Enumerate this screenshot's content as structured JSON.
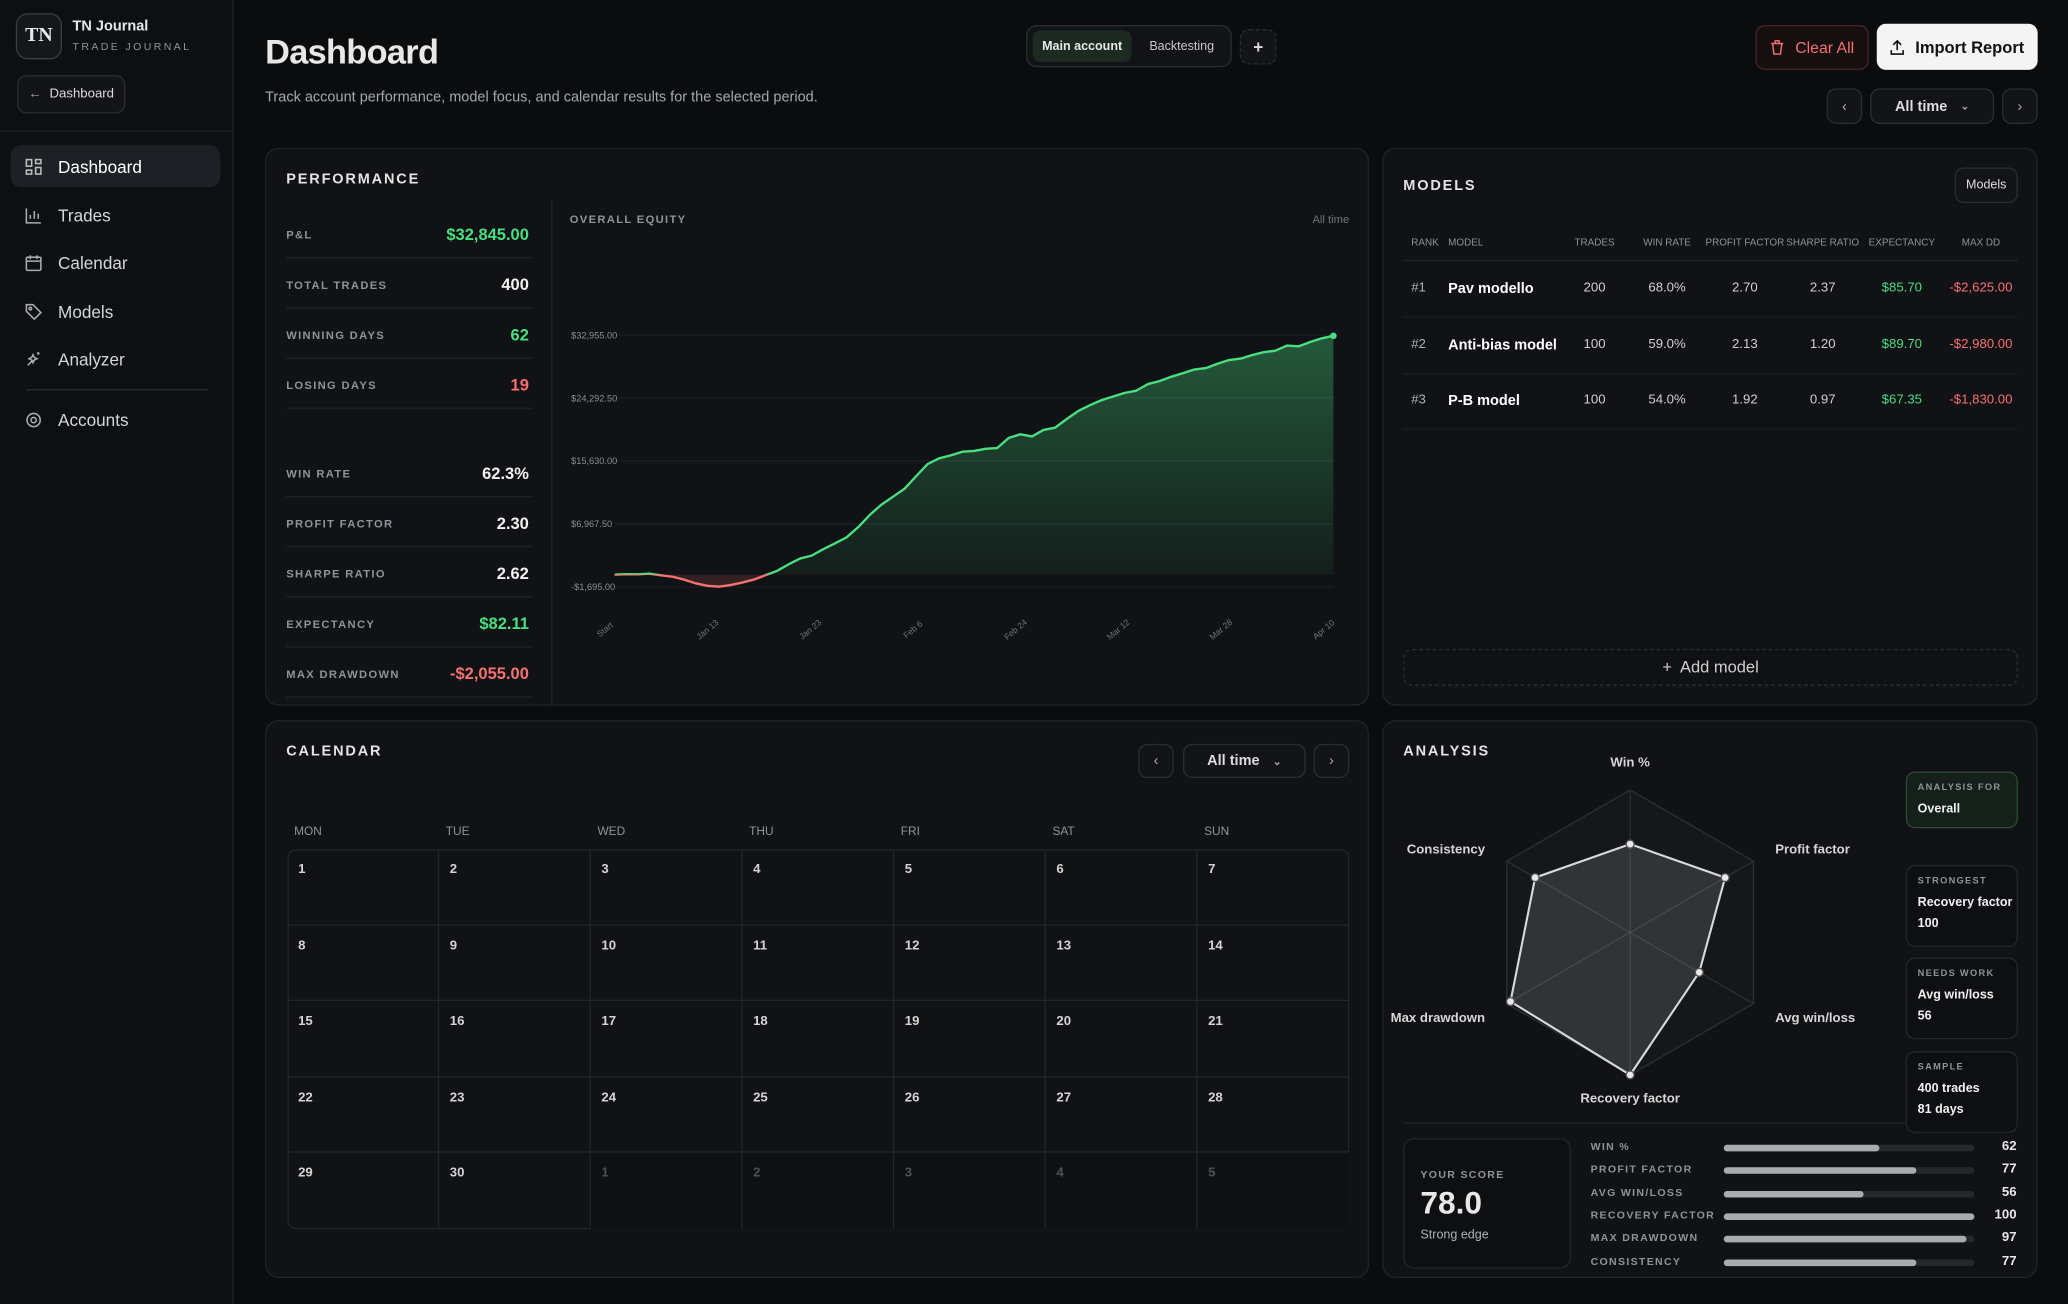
{
  "sidebar": {
    "brand": "TN",
    "app_name": "TN Journal",
    "app_subtitle": "TRADE JOURNAL",
    "back_button": "Dashboard",
    "nav": [
      "Dashboard",
      "Trades",
      "Calendar",
      "Models",
      "Analyzer"
    ],
    "nav_footer": "Accounts"
  },
  "header": {
    "title": "Dashboard",
    "subtitle": "Track account performance, model focus, and calendar results for the selected period.",
    "account_tabs": [
      "Main account",
      "Backtesting"
    ],
    "add_button": "+",
    "clear_button": "Clear All",
    "import_button": "Import Report",
    "period": "All time"
  },
  "performance": {
    "title": "PERFORMANCE",
    "stats": [
      {
        "label": "P&L",
        "value": "$32,845.00",
        "color": "#4ade80"
      },
      {
        "label": "TOTAL TRADES",
        "value": "400",
        "color": "#f2f2f2"
      },
      {
        "label": "WINNING DAYS",
        "value": "62",
        "color": "#4ade80"
      },
      {
        "label": "LOSING DAYS",
        "value": "19",
        "color": "#f87171"
      }
    ],
    "ratios": [
      {
        "label": "WIN RATE",
        "value": "62.3%",
        "color": "#f2f2f2"
      },
      {
        "label": "PROFIT FACTOR",
        "value": "2.30",
        "color": "#f2f2f2"
      },
      {
        "label": "SHARPE RATIO",
        "value": "2.62",
        "color": "#f2f2f2"
      },
      {
        "label": "EXPECTANCY",
        "value": "$82.11",
        "color": "#4ade80"
      },
      {
        "label": "MAX DRAWDOWN",
        "value": "-$2,055.00",
        "color": "#f87171"
      }
    ]
  },
  "chart_data": [
    {
      "type": "line",
      "title": "OVERALL EQUITY",
      "period_label": "All time",
      "x_labels": [
        "Start",
        "Jan 13",
        "Jan 23",
        "Feb 6",
        "Feb 24",
        "Mar 12",
        "Mar 28",
        "Apr 10"
      ],
      "values": [
        0,
        50,
        30,
        120,
        -100,
        -300,
        -700,
        -1200,
        -1550,
        -1650,
        -1450,
        -1100,
        -700,
        -100,
        500,
        1400,
        2200,
        2600,
        3500,
        4300,
        5100,
        6500,
        8200,
        9600,
        10700,
        11800,
        13500,
        15200,
        16000,
        16400,
        16900,
        17000,
        17300,
        17400,
        18800,
        19300,
        19000,
        19900,
        20200,
        21400,
        22500,
        23300,
        24000,
        24500,
        25000,
        25300,
        26200,
        26600,
        27200,
        27700,
        28200,
        28400,
        29000,
        29500,
        29700,
        30200,
        30600,
        30800,
        31500,
        31400,
        32000,
        32500,
        32845
      ],
      "ylim": [
        -1695,
        32955
      ],
      "yticks": [
        {
          "value": -1695,
          "label": "-$1,695.00"
        },
        {
          "value": 6967.5,
          "label": "$6,967.50"
        },
        {
          "value": 15630,
          "label": "$15,630.00"
        },
        {
          "value": 24292.5,
          "label": "$24,292.50"
        },
        {
          "value": 32955,
          "label": "$32,955.00"
        }
      ],
      "grid": true,
      "color": "#4ade80",
      "negative_color": "#f87171"
    },
    {
      "type": "radar",
      "categories": [
        "Win %",
        "Profit factor",
        "Avg win/loss",
        "Recovery factor",
        "Max drawdown",
        "Consistency"
      ],
      "values": [
        62,
        77,
        56,
        100,
        97,
        77
      ],
      "rlim": [
        0,
        100
      ],
      "color": "#d9d9d9"
    }
  ],
  "models": {
    "title": "MODELS",
    "button": "Models",
    "columns": [
      {
        "label": "RANK"
      },
      {
        "label": "MODEL"
      },
      {
        "label": "TRADES"
      },
      {
        "label": "WIN RATE"
      },
      {
        "label": "PROFIT FACTOR"
      },
      {
        "label": "SHARPE RATIO"
      },
      {
        "label": "EXPECTANCY",
        "color": "#4ade80"
      },
      {
        "label": "MAX DD",
        "color": "#f87171"
      }
    ],
    "rows": [
      [
        "#1",
        "Pav modello",
        "200",
        "68.0%",
        "2.70",
        "2.37",
        "$85.70",
        "-$2,625.00"
      ],
      [
        "#2",
        "Anti-bias model",
        "100",
        "59.0%",
        "2.13",
        "1.20",
        "$89.70",
        "-$2,980.00"
      ],
      [
        "#3",
        "P-B model",
        "100",
        "54.0%",
        "1.92",
        "0.97",
        "$67.35",
        "-$1,830.00"
      ]
    ],
    "add_button": "Add model"
  },
  "calendar": {
    "title": "CALENDAR",
    "period": "All time",
    "weekdays": [
      "MON",
      "TUE",
      "WED",
      "THU",
      "FRI",
      "SAT",
      "SUN"
    ],
    "days": [
      1,
      2,
      3,
      4,
      5,
      6,
      7,
      8,
      9,
      10,
      11,
      12,
      13,
      14,
      15,
      16,
      17,
      18,
      19,
      20,
      21,
      22,
      23,
      24,
      25,
      26,
      27,
      28,
      29,
      30
    ],
    "next_month_days": [
      1,
      2,
      3,
      4,
      5
    ]
  },
  "analysis": {
    "title": "ANALYSIS",
    "cards": [
      {
        "label": "ANALYSIS FOR",
        "lines": [
          "Overall"
        ]
      },
      {
        "label": "STRONGEST",
        "lines": [
          "Recovery factor",
          "100"
        ]
      },
      {
        "label": "NEEDS WORK",
        "lines": [
          "Avg win/loss",
          "56"
        ]
      },
      {
        "label": "SAMPLE",
        "lines": [
          "400 trades",
          "81 days"
        ]
      }
    ],
    "score": {
      "label": "YOUR SCORE",
      "value": "78.0",
      "caption": "Strong edge"
    },
    "breakdown": [
      {
        "label": "WIN %",
        "value": 62
      },
      {
        "label": "PROFIT FACTOR",
        "value": 77
      },
      {
        "label": "AVG WIN/LOSS",
        "value": 56
      },
      {
        "label": "RECOVERY FACTOR",
        "value": 100
      },
      {
        "label": "MAX DRAWDOWN",
        "value": 97
      },
      {
        "label": "CONSISTENCY",
        "value": 77
      }
    ]
  }
}
